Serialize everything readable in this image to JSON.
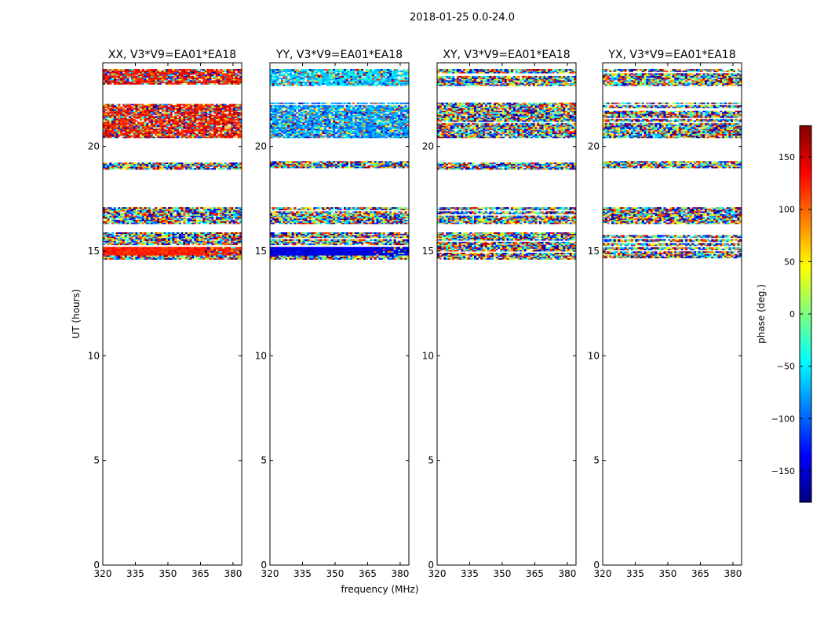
{
  "chart_data": {
    "type": "heatmap",
    "suptitle": "2018-01-25 0.0-24.0",
    "xlabel": "frequency (MHz)",
    "ylabel": "UT (hours)",
    "xlim": [
      320,
      384
    ],
    "ylim": [
      0,
      24
    ],
    "x_ticks": [
      320,
      335,
      350,
      365,
      380
    ],
    "y_ticks": [
      0,
      5,
      10,
      15,
      20
    ],
    "colorbar": {
      "label": "phase (deg.)",
      "range": [
        -180,
        180
      ],
      "ticks": [
        -150,
        -100,
        -50,
        0,
        50,
        100,
        150
      ],
      "colormap": "jet",
      "colors": [
        "#00007f",
        "#0000ff",
        "#007fff",
        "#00ffff",
        "#7fff7f",
        "#ffff00",
        "#ff7f00",
        "#ff0000",
        "#7f0000"
      ]
    },
    "blank_color": "#ffffff",
    "panels": [
      {
        "title": "XX, V3*V9=EA01*EA18",
        "bands": [
          {
            "t0": 14.6,
            "t1": 14.8,
            "pattern": "noise"
          },
          {
            "t0": 14.8,
            "t1": 15.2,
            "pattern": "solid",
            "phase": 125
          },
          {
            "t0": 15.3,
            "t1": 15.9,
            "pattern": "noise"
          },
          {
            "t0": 16.3,
            "t1": 17.1,
            "pattern": "noise"
          },
          {
            "t0": 18.9,
            "t1": 19.3,
            "pattern": "noise"
          },
          {
            "t0": 20.4,
            "t1": 22.1,
            "pattern": "mostly",
            "phase": 130
          },
          {
            "t0": 22.9,
            "t1": 23.7,
            "pattern": "mostly",
            "phase": 135
          }
        ]
      },
      {
        "title": "YY, V3*V9=EA01*EA18",
        "bands": [
          {
            "t0": 14.6,
            "t1": 14.8,
            "pattern": "noise"
          },
          {
            "t0": 14.8,
            "t1": 15.2,
            "pattern": "solid",
            "phase": -145
          },
          {
            "t0": 15.3,
            "t1": 15.9,
            "pattern": "noise"
          },
          {
            "t0": 16.3,
            "t1": 17.1,
            "pattern": "noise"
          },
          {
            "t0": 18.9,
            "t1": 19.3,
            "pattern": "noise"
          },
          {
            "t0": 20.4,
            "t1": 22.1,
            "pattern": "mostly",
            "phase": -80
          },
          {
            "t0": 22.9,
            "t1": 23.7,
            "pattern": "mostly",
            "phase": -60
          }
        ]
      },
      {
        "title": "XY, V3*V9=EA01*EA18",
        "bands": [
          {
            "t0": 14.6,
            "t1": 15.9,
            "pattern": "noise"
          },
          {
            "t0": 16.3,
            "t1": 17.1,
            "pattern": "noise"
          },
          {
            "t0": 18.9,
            "t1": 19.3,
            "pattern": "noise"
          },
          {
            "t0": 20.4,
            "t1": 22.1,
            "pattern": "noise"
          },
          {
            "t0": 22.9,
            "t1": 23.7,
            "pattern": "noise"
          }
        ]
      },
      {
        "title": "YX, V3*V9=EA01*EA18",
        "bands": [
          {
            "t0": 14.6,
            "t1": 15.9,
            "pattern": "noise"
          },
          {
            "t0": 16.3,
            "t1": 17.1,
            "pattern": "noise"
          },
          {
            "t0": 18.9,
            "t1": 19.3,
            "pattern": "noise"
          },
          {
            "t0": 20.4,
            "t1": 22.1,
            "pattern": "noise"
          },
          {
            "t0": 22.9,
            "t1": 23.7,
            "pattern": "noise"
          }
        ]
      }
    ]
  }
}
